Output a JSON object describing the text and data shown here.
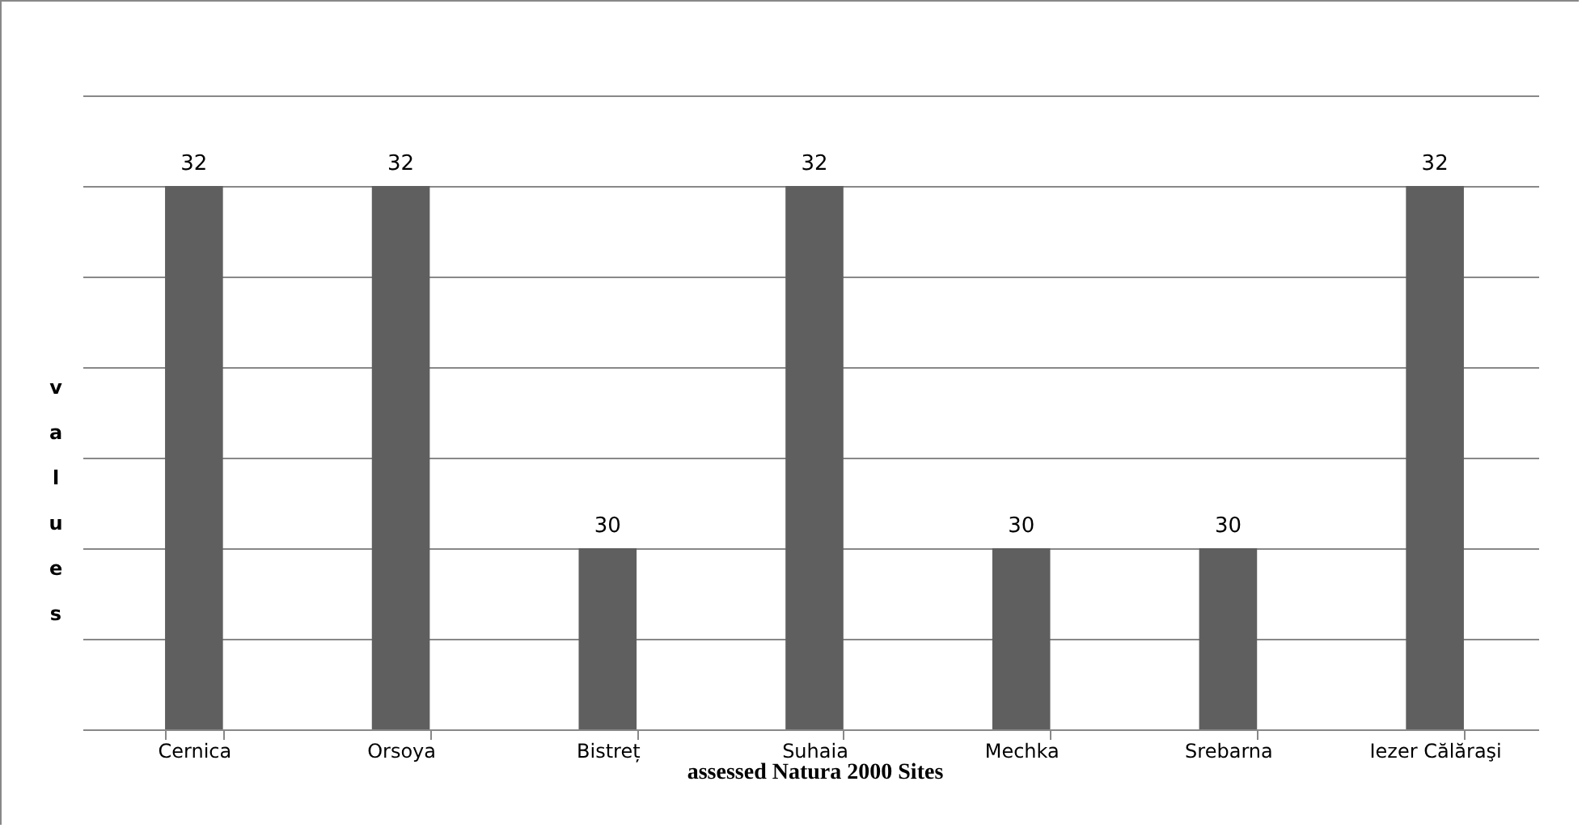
{
  "chart_data": {
    "type": "bar",
    "xlabel": "assessed Natura 2000 Sites",
    "ylabel": "values",
    "categories": [
      "Cernica",
      "Orsoya",
      "Bistreț",
      "Suhaia",
      "Mechka",
      "Srebarna",
      "Iezer Călăraşi"
    ],
    "values": [
      32,
      32,
      30,
      32,
      30,
      30,
      32
    ],
    "color": "#5f5f5f",
    "data_labels": true,
    "ylim": [
      29,
      32.5
    ],
    "yticks": [
      {
        "value": 29,
        "label": null
      },
      {
        "value": 29.5,
        "label": null
      },
      {
        "value": 30,
        "label": null
      },
      {
        "value": 30.5,
        "label": null
      },
      {
        "value": 31,
        "label": null
      },
      {
        "value": 31.5,
        "label": null
      },
      {
        "value": 32,
        "label": null
      },
      {
        "value": 32.5,
        "label": null
      }
    ],
    "grid": "y",
    "tick_labels": "x"
  }
}
